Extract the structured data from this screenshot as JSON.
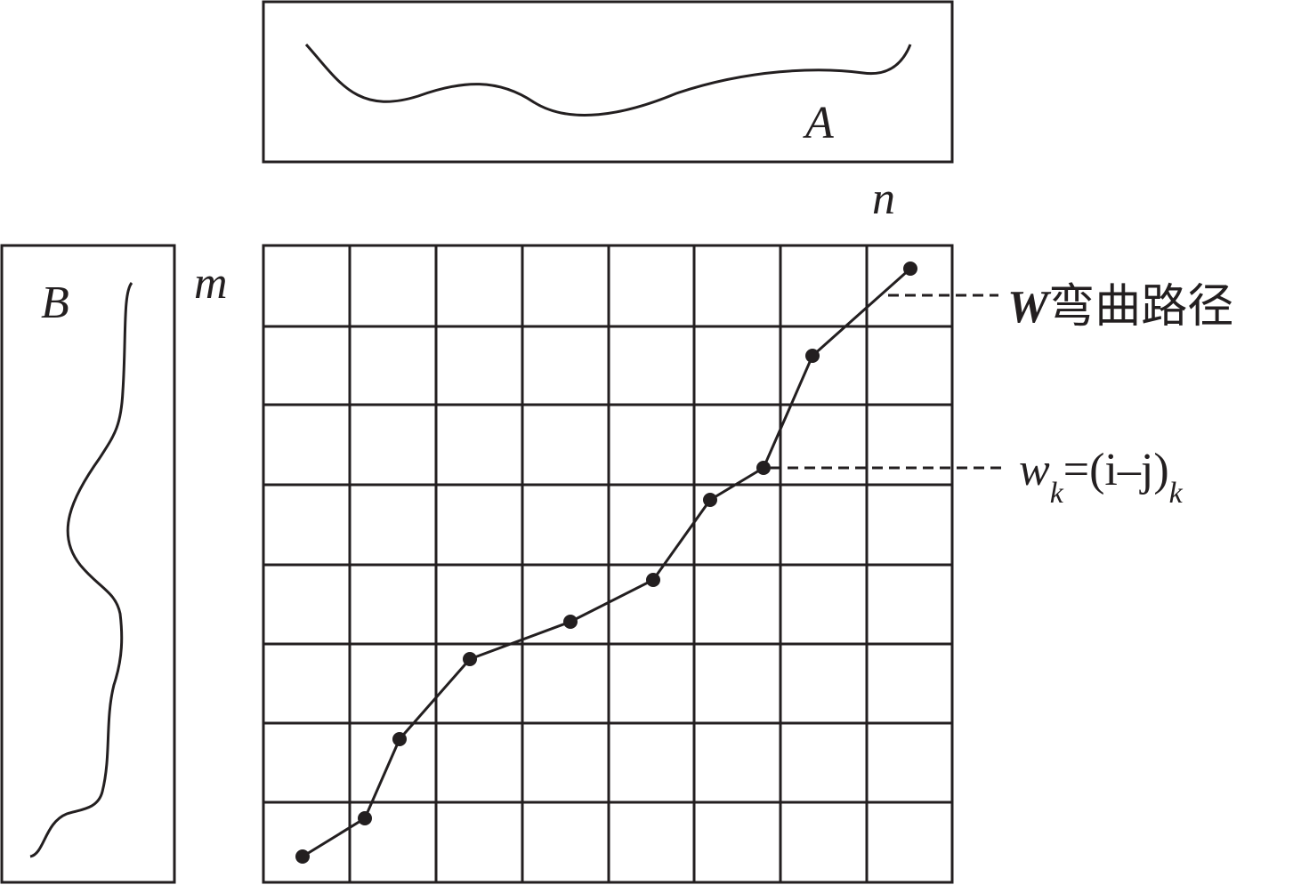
{
  "labels": {
    "a": "A",
    "b": "B",
    "n": "n",
    "m": "m"
  },
  "path_label": {
    "symbol": "W",
    "text": "弯曲路径"
  },
  "point_label": {
    "symbol": "w",
    "sub": "k",
    "expr": "=(i–j)",
    "sub2": "k"
  }
}
